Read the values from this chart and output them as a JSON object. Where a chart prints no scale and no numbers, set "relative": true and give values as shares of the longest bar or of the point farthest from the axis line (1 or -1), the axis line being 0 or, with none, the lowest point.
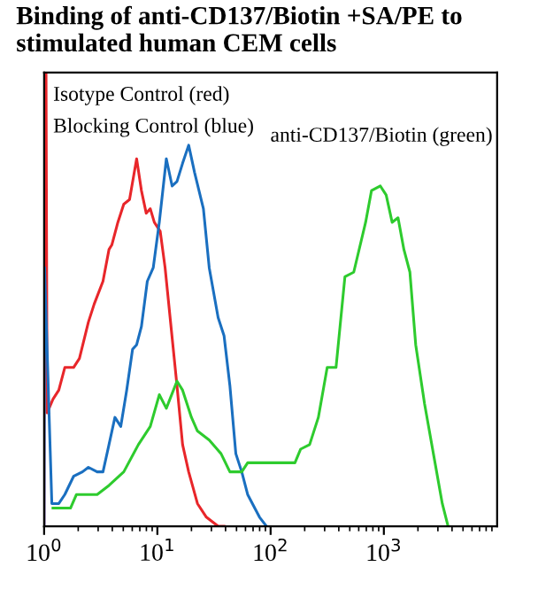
{
  "chart_data": {
    "type": "line",
    "title": "Binding of anti-CD137/Biotin +SA/PE to stimulated human CEM cells",
    "relative": true,
    "log": "x",
    "xlim": [
      1,
      10000
    ],
    "xticks": [
      {
        "value": 1,
        "label": "10$^{0}$"
      },
      {
        "value": 10,
        "label": "10$^{1}$"
      },
      {
        "value": 100,
        "label": "10$^{2}$"
      },
      {
        "value": 1000,
        "label": "10$^{3}$"
      }
    ],
    "grid": false,
    "legend": false,
    "annotations": [
      "Isotype Control (red)",
      "Blocking Control (blue)",
      "anti-CD137/Biotin (green)"
    ],
    "series": [
      {
        "color": "#e8262a",
        "x": [
          1,
          1.01,
          1.04,
          1.063,
          1.197,
          1.348,
          1.523,
          1.82,
          2.05,
          2.46,
          2.77,
          3.31,
          3.74,
          3.96,
          4.48,
          5.05,
          5.68,
          6.56,
          7.23,
          7.97,
          8.66,
          9.4,
          10.6,
          11.7,
          13.2,
          14.9,
          16.7,
          18.9,
          22.6,
          27.1,
          34.4,
          38.8
        ],
        "values": [
          0,
          1,
          1,
          0.25,
          0.28,
          0.3,
          0.35,
          0.35,
          0.37,
          0.45,
          0.49,
          0.54,
          0.61,
          0.62,
          0.67,
          0.71,
          0.72,
          0.81,
          0.74,
          0.69,
          0.7,
          0.67,
          0.65,
          0.57,
          0.44,
          0.31,
          0.18,
          0.12,
          0.05,
          0.02,
          0,
          0
        ]
      },
      {
        "color": "#1a6fc0",
        "x": [
          1,
          1.01,
          1.17,
          1.348,
          1.523,
          1.82,
          2.18,
          2.46,
          2.94,
          3.31,
          3.74,
          4.22,
          4.75,
          5.36,
          6.04,
          6.56,
          7.23,
          8.15,
          9.2,
          10.4,
          12.0,
          13.5,
          14.9,
          16.7,
          18.9,
          21.3,
          25.5,
          28.7,
          34.4,
          38.8,
          43.7,
          49.3,
          55.6,
          62.7,
          79.8,
          92
        ],
        "values": [
          0,
          0.57,
          0.05,
          0.05,
          0.07,
          0.11,
          0.12,
          0.13,
          0.12,
          0.12,
          0.18,
          0.24,
          0.22,
          0.3,
          0.39,
          0.4,
          0.44,
          0.54,
          0.57,
          0.67,
          0.81,
          0.75,
          0.76,
          0.8,
          0.84,
          0.78,
          0.7,
          0.57,
          0.46,
          0.42,
          0.31,
          0.16,
          0.12,
          0.07,
          0.02,
          0
        ]
      },
      {
        "color": "#2ecb2e",
        "x": [
          1.197,
          1.71,
          1.93,
          2.94,
          3.74,
          5.05,
          6.8,
          8.66,
          10.4,
          12.0,
          14.9,
          16.7,
          20.0,
          22.6,
          28.7,
          36.5,
          43.7,
          55.6,
          62.7,
          79.8,
          114,
          137,
          164,
          184,
          221,
          264,
          316,
          378,
          453,
          542,
          690,
          778,
          931,
          1048,
          1183,
          1334,
          1503,
          1698,
          1911,
          2287,
          2738,
          3280,
          3690
        ],
        "values": [
          0.04,
          0.04,
          0.07,
          0.07,
          0.09,
          0.12,
          0.18,
          0.22,
          0.29,
          0.26,
          0.32,
          0.3,
          0.24,
          0.21,
          0.19,
          0.16,
          0.12,
          0.12,
          0.14,
          0.14,
          0.14,
          0.14,
          0.14,
          0.17,
          0.18,
          0.24,
          0.35,
          0.35,
          0.55,
          0.56,
          0.67,
          0.74,
          0.75,
          0.73,
          0.67,
          0.68,
          0.61,
          0.56,
          0.4,
          0.27,
          0.16,
          0.05,
          0
        ]
      }
    ]
  }
}
